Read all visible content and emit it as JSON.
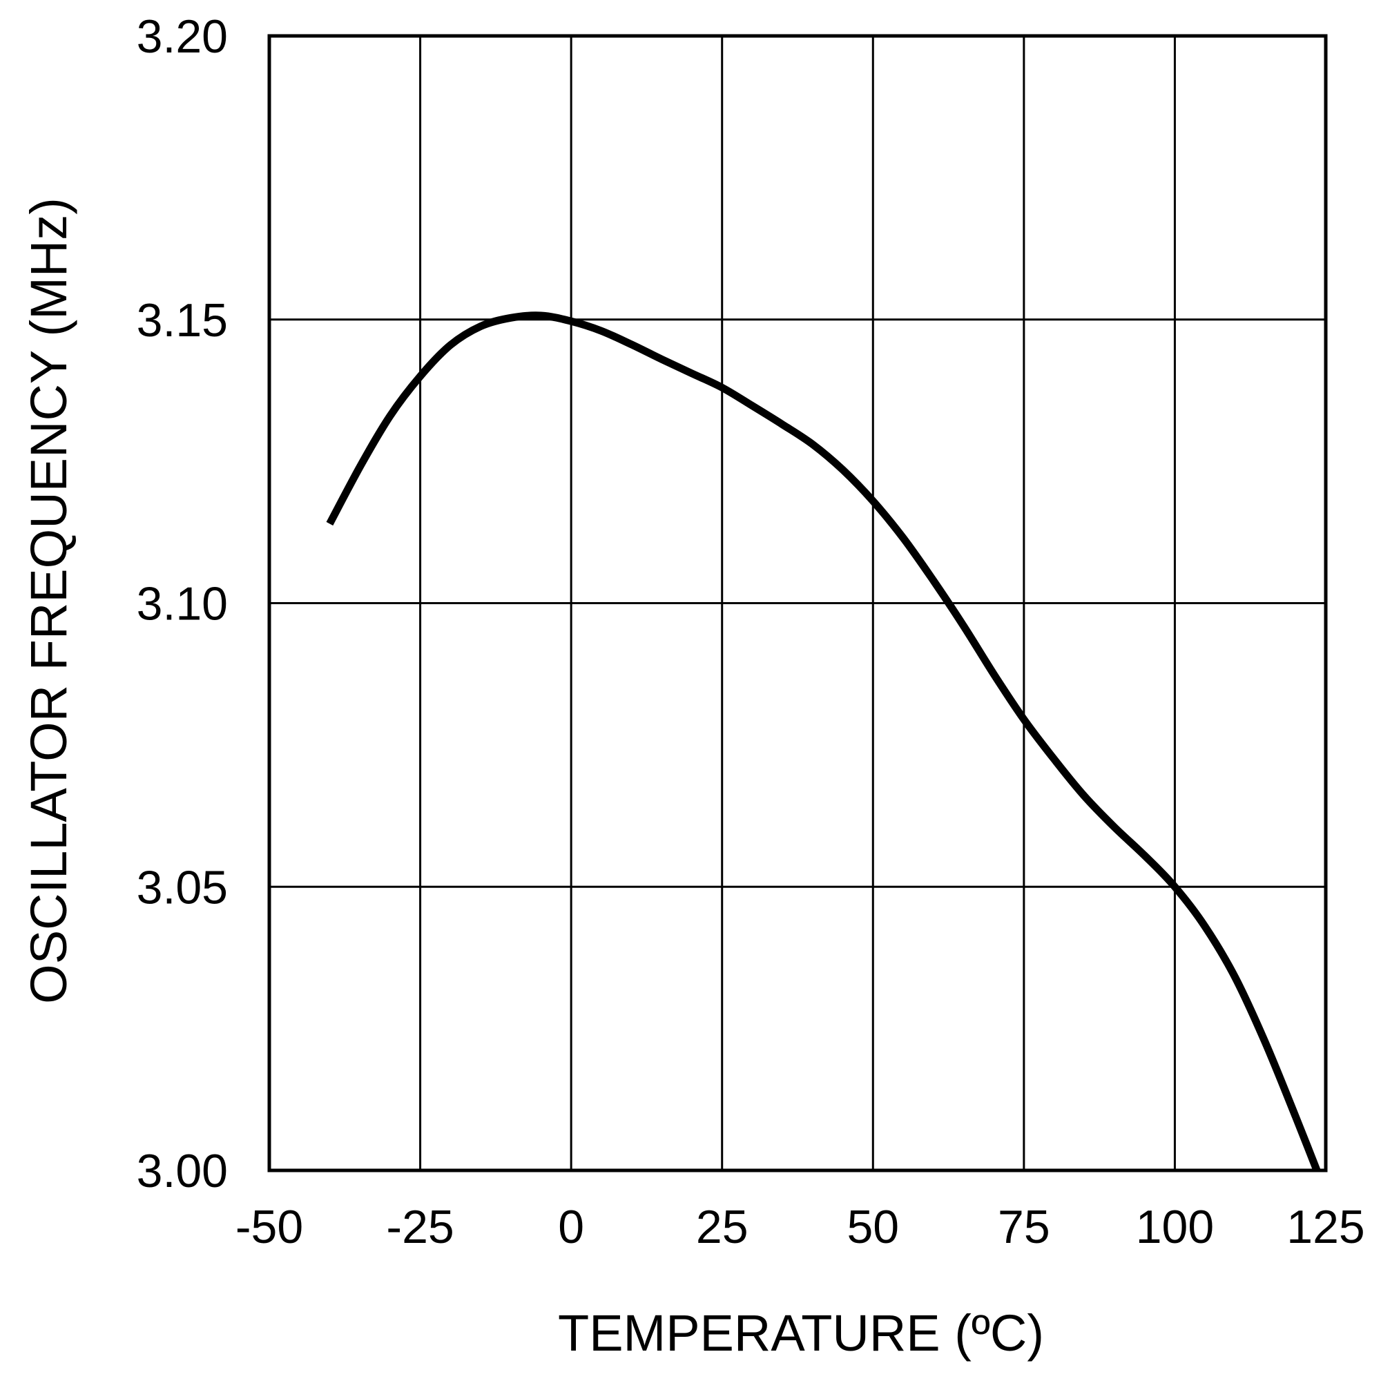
{
  "chart_data": {
    "type": "line",
    "title": "",
    "xlabel": "TEMPERATURE (ºC)",
    "ylabel": "OSCILLATOR FREQUENCY (MHz)",
    "xlim": [
      -50,
      125
    ],
    "ylim": [
      3.0,
      3.2
    ],
    "xticks": [
      -50,
      -25,
      0,
      25,
      50,
      75,
      100,
      125
    ],
    "xtick_labels": [
      "-50",
      "-25",
      "0",
      "25",
      "50",
      "75",
      "100",
      "125"
    ],
    "yticks": [
      3.0,
      3.05,
      3.1,
      3.15,
      3.2
    ],
    "ytick_labels": [
      "3.00",
      "3.05",
      "3.10",
      "3.15",
      "3.20"
    ],
    "grid": true,
    "legend": "none",
    "series": [
      {
        "name": "Oscillator Frequency",
        "color": "#000000",
        "x": [
          -40,
          -35,
          -30,
          -25,
          -20,
          -15,
          -10,
          -5,
          0,
          5,
          10,
          15,
          20,
          25,
          30,
          35,
          40,
          45,
          50,
          55,
          60,
          65,
          70,
          75,
          80,
          85,
          90,
          95,
          100,
          105,
          110,
          115,
          120,
          125
        ],
        "y": [
          3.114,
          3.124,
          3.133,
          3.14,
          3.1455,
          3.1488,
          3.1503,
          3.1507,
          3.1497,
          3.148,
          3.1456,
          3.143,
          3.1405,
          3.138,
          3.1348,
          3.1315,
          3.128,
          3.1235,
          3.118,
          3.1115,
          3.104,
          3.096,
          3.0875,
          3.0795,
          3.0725,
          3.066,
          3.0605,
          3.0555,
          3.05,
          3.043,
          3.034,
          3.0225,
          3.0095,
          2.996
        ]
      }
    ]
  }
}
